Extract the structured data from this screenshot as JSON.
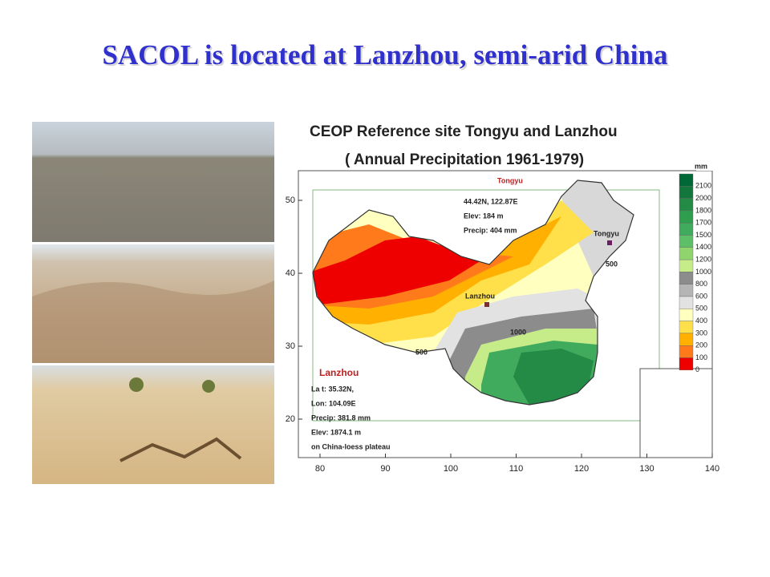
{
  "title": "SACOL is located at Lanzhou, semi-arid China",
  "map": {
    "title": "CEOP Reference site Tongyu and Lanzhou",
    "subtitle": "( Annual Precipitation 1961-1979)",
    "legend_unit": "mm",
    "legend": [
      {
        "label": "2100",
        "color": "#006837"
      },
      {
        "label": "2000",
        "color": "#13773d"
      },
      {
        "label": "1800",
        "color": "#238b45"
      },
      {
        "label": "1700",
        "color": "#2f9e4f"
      },
      {
        "label": "1500",
        "color": "#41ab5d"
      },
      {
        "label": "1400",
        "color": "#5dc068"
      },
      {
        "label": "1200",
        "color": "#8fd46c"
      },
      {
        "label": "1000",
        "color": "#c6ec8a"
      },
      {
        "label": "800",
        "color": "#8c8c8c"
      },
      {
        "label": "600",
        "color": "#b5b5b5"
      },
      {
        "label": "500",
        "color": "#e2e2e2"
      },
      {
        "label": "400",
        "color": "#ffffc0"
      },
      {
        "label": "300",
        "color": "#ffe04a"
      },
      {
        "label": "200",
        "color": "#ffb000"
      },
      {
        "label": "100",
        "color": "#ff7a1a"
      },
      {
        "label": "0",
        "color": "#ee0000"
      }
    ],
    "yticks": [
      "50",
      "40",
      "30",
      "20"
    ],
    "xticks": [
      "80",
      "90",
      "100",
      "110",
      "120",
      "130",
      "140"
    ],
    "tongyu_box": {
      "name": "Tongyu",
      "lines": [
        "44.42N, 122.87E",
        "Elev:    184 m",
        "Precip:  404 mm"
      ]
    },
    "lanzhou_box": {
      "name": "Lanzhou",
      "lines": [
        "La t:        35.32N,",
        "Lon:       104.09E",
        "Precip: 381.8 mm",
        "Elev:      1874.1 m",
        "on China-loess plateau"
      ]
    },
    "site_labels": {
      "tongyu": "Tongyu",
      "lanzhou": "Lanzhou"
    },
    "contour_labels": [
      "500",
      "1000",
      "500"
    ]
  }
}
